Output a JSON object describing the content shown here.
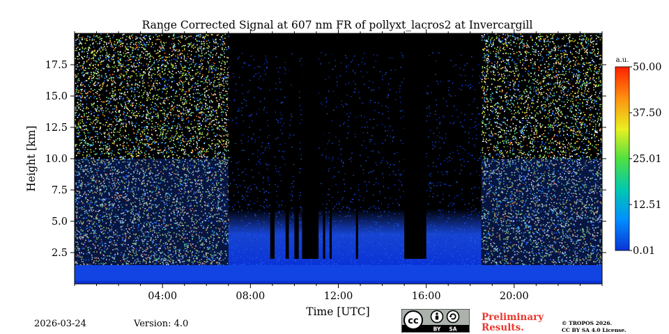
{
  "chart_data": {
    "type": "heatmap",
    "title": "Range Corrected Signal at 607 nm FR of pollyxt_lacros2 at Invercargill",
    "xlabel": "Time [UTC]",
    "ylabel": "Height [km]",
    "xlim_hours": [
      0,
      24
    ],
    "ylim_km": [
      0,
      20
    ],
    "x_ticks": [
      {
        "hour": 4,
        "label": "04:00"
      },
      {
        "hour": 8,
        "label": "08:00"
      },
      {
        "hour": 12,
        "label": "12:00"
      },
      {
        "hour": 16,
        "label": "16:00"
      },
      {
        "hour": 20,
        "label": "20:00"
      }
    ],
    "y_ticks": [
      {
        "km": 2.5,
        "label": "2.5"
      },
      {
        "km": 5.0,
        "label": "5.0"
      },
      {
        "km": 7.5,
        "label": "7.5"
      },
      {
        "km": 10.0,
        "label": "10.0"
      },
      {
        "km": 12.5,
        "label": "12.5"
      },
      {
        "km": 15.0,
        "label": "15.0"
      },
      {
        "km": 17.5,
        "label": "17.5"
      }
    ],
    "colorbar": {
      "unit": "a.u.",
      "min": 0.01,
      "max": 50.0,
      "ticks": [
        {
          "value": 0.01,
          "label": "0.01"
        },
        {
          "value": 12.51,
          "label": "12.51"
        },
        {
          "value": 25.01,
          "label": "25.01"
        },
        {
          "value": 37.5,
          "label": "37.50"
        },
        {
          "value": 50.0,
          "label": "50.00"
        }
      ],
      "colors": [
        "#0a33d6",
        "#0090ff",
        "#00c8b0",
        "#50e040",
        "#e8f020",
        "#ff9010",
        "#ff2000"
      ]
    },
    "daylight_noise_hours": [
      [
        0,
        7.0
      ],
      [
        18.5,
        24
      ]
    ],
    "night_hours": [
      7.0,
      18.5
    ],
    "boundary_layer_top_km": 1.5
  },
  "footer": {
    "date": "2026-03-24",
    "version": "Version: 4.0",
    "preliminary": [
      "Preliminary",
      "Results."
    ],
    "copyright": [
      "© TROPOS 2026.",
      "CC BY SA 4.0 License."
    ],
    "license_badge": {
      "cc": "cc",
      "by": "BY",
      "sa": "SA"
    }
  }
}
